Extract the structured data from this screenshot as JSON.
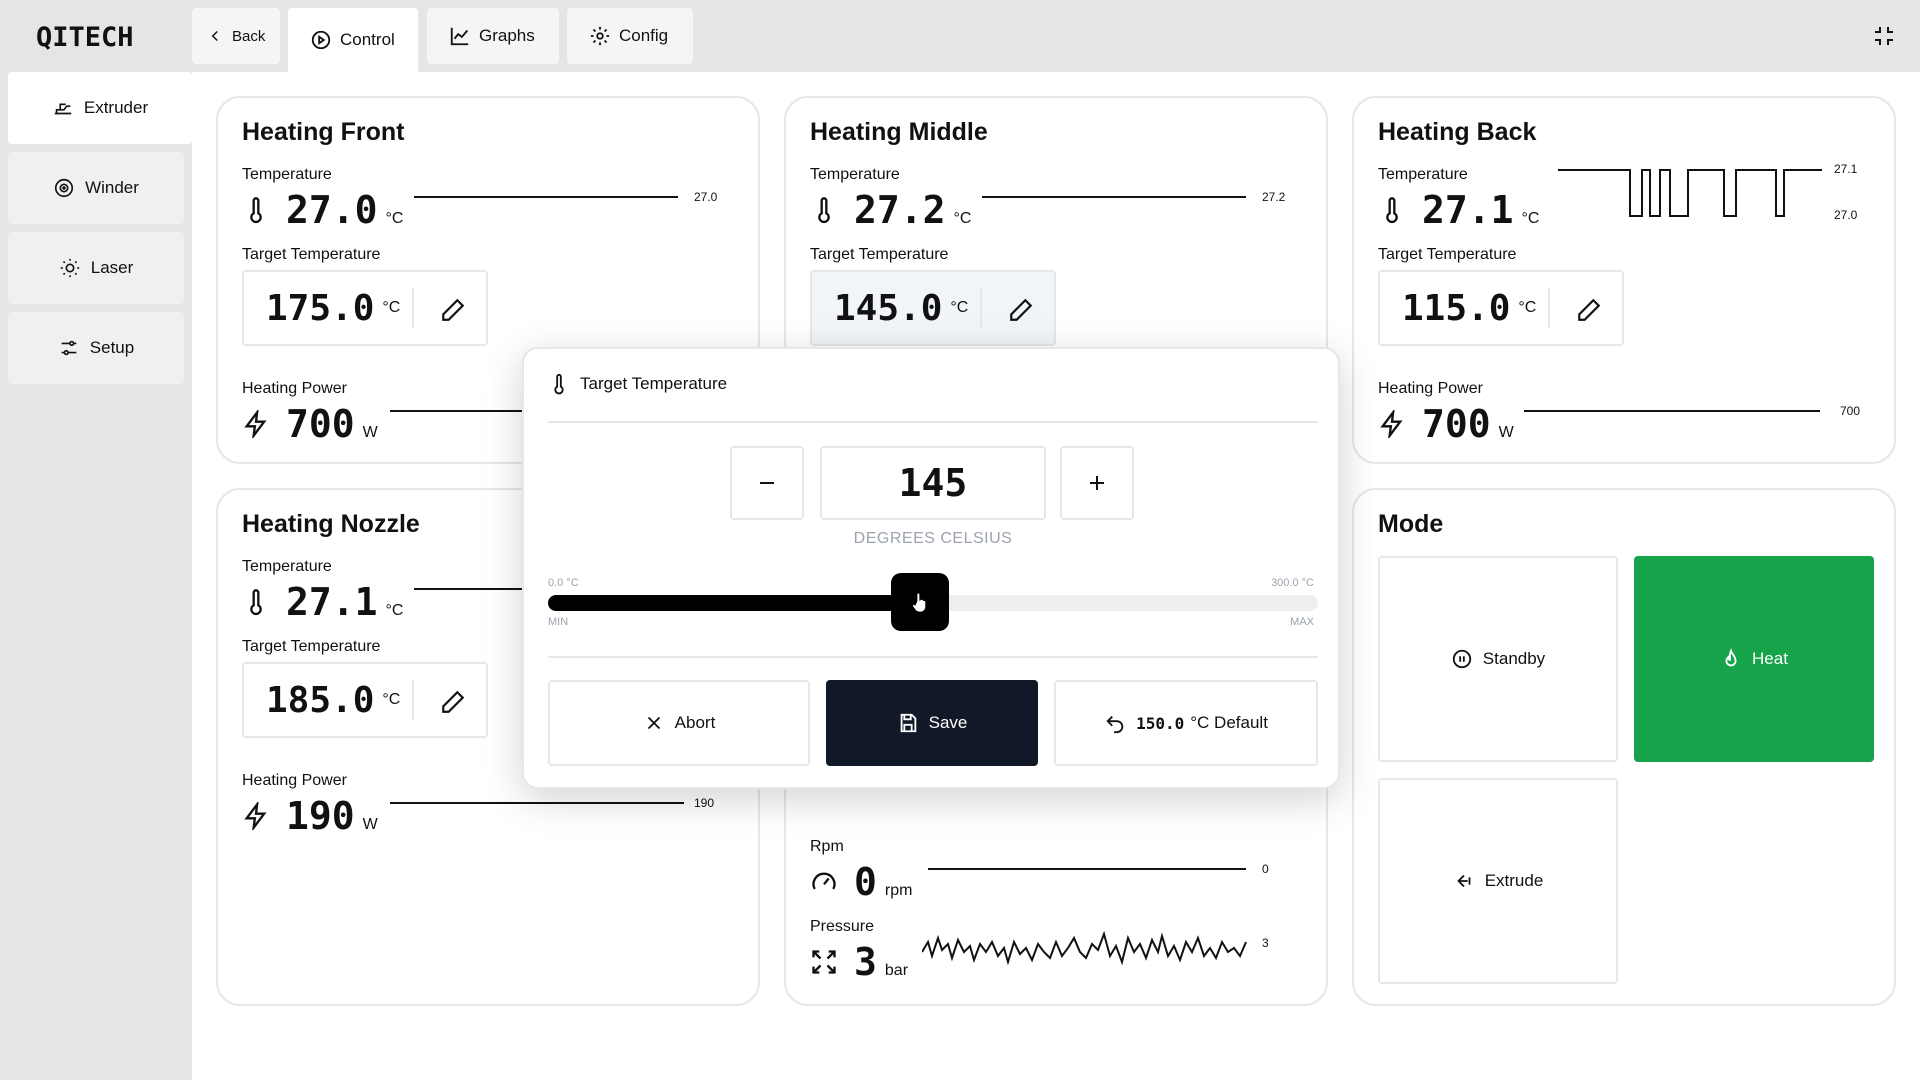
{
  "app": {
    "logo": "QITECH"
  },
  "topbar": {
    "back_label": "Back",
    "tabs": [
      {
        "label": "Control",
        "icon": "play-circle-icon",
        "active": true
      },
      {
        "label": "Graphs",
        "icon": "line-chart-icon",
        "active": false
      },
      {
        "label": "Config",
        "icon": "gear-icon",
        "active": false
      }
    ],
    "fullscreen_icon": "minimize-icon"
  },
  "sidebar": {
    "items": [
      {
        "label": "Extruder",
        "icon": "extruder-icon",
        "active": true
      },
      {
        "label": "Winder",
        "icon": "spool-icon",
        "active": false
      },
      {
        "label": "Laser",
        "icon": "sun-icon",
        "active": false
      },
      {
        "label": "Setup",
        "icon": "sliders-icon",
        "active": false
      }
    ]
  },
  "cards": {
    "front": {
      "title": "Heating Front",
      "temp_label": "Temperature",
      "temp_value": "27.0",
      "temp_unit": "°C",
      "temp_spark": "27.0",
      "target_label": "Target Temperature",
      "target_value": "175.0",
      "target_unit": "°C",
      "power_label": "Heating Power",
      "power_value": "700",
      "power_unit": "W"
    },
    "middle": {
      "title": "Heating Middle",
      "temp_label": "Temperature",
      "temp_value": "27.2",
      "temp_unit": "°C",
      "temp_spark": "27.2",
      "target_label": "Target Temperature",
      "target_value": "145.0",
      "target_unit": "°C",
      "rpm_label": "Rpm",
      "rpm_value": "0",
      "rpm_unit": "rpm",
      "rpm_spark": "0",
      "pressure_label": "Pressure",
      "pressure_value": "3",
      "pressure_unit": "bar",
      "pressure_spark": "3"
    },
    "back": {
      "title": "Heating Back",
      "temp_label": "Temperature",
      "temp_value": "27.1",
      "temp_unit": "°C",
      "temp_spark_high": "27.1",
      "temp_spark_low": "27.0",
      "target_label": "Target Temperature",
      "target_value": "115.0",
      "target_unit": "°C",
      "power_label": "Heating Power",
      "power_value": "700",
      "power_unit": "W",
      "power_spark": "700"
    },
    "nozzle": {
      "title": "Heating Nozzle",
      "temp_label": "Temperature",
      "temp_value": "27.1",
      "temp_unit": "°C",
      "target_label": "Target Temperature",
      "target_value": "185.0",
      "target_unit": "°C",
      "power_label": "Heating Power",
      "power_value": "190",
      "power_unit": "W",
      "power_spark": "190"
    },
    "mode": {
      "title": "Mode",
      "standby_label": "Standby",
      "heat_label": "Heat",
      "extrude_label": "Extrude",
      "active": "Heat",
      "active_color": "#16a34a"
    }
  },
  "dialog": {
    "title": "Target Temperature",
    "value": "145",
    "unit_caption": "DEGREES CELSIUS",
    "min_value": "0.0 °C",
    "max_value": "300.0 °C",
    "min_caption": "MIN",
    "max_caption": "MAX",
    "slider_fraction": 0.483,
    "abort_label": "Abort",
    "save_label": "Save",
    "default_value": "150.0",
    "default_label": "°C Default"
  }
}
